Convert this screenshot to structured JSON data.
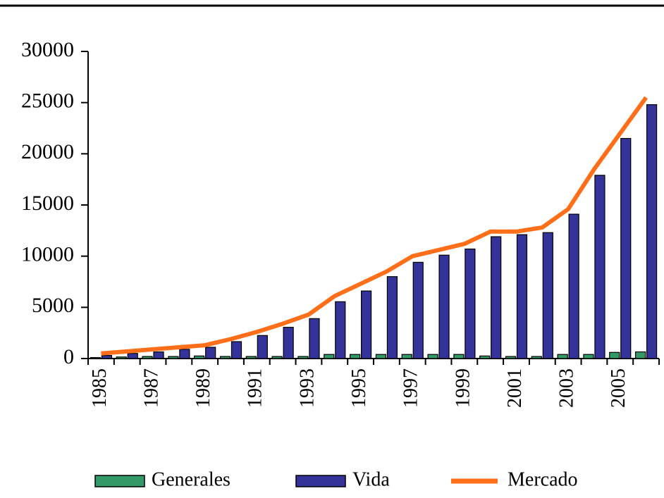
{
  "chart_data": {
    "type": "bar",
    "categories": [
      "1985",
      null,
      "1987",
      null,
      "1989",
      null,
      "1991",
      null,
      "1993",
      null,
      "1995",
      null,
      "1997",
      null,
      "1999",
      null,
      "2001",
      null,
      "2003",
      null,
      "2005",
      null
    ],
    "series": [
      {
        "name": "Generales",
        "color": "#339966",
        "values": [
          100,
          150,
          200,
          200,
          250,
          200,
          200,
          200,
          200,
          400,
          400,
          400,
          400,
          400,
          400,
          250,
          200,
          200,
          400,
          400,
          600,
          650
        ]
      },
      {
        "name": "Vida",
        "color": "#333399",
        "values": [
          300,
          500,
          650,
          900,
          1100,
          1650,
          2250,
          3050,
          3900,
          5550,
          6600,
          8000,
          9400,
          10100,
          10700,
          11900,
          12100,
          12300,
          14100,
          17900,
          21500,
          24800
        ]
      },
      {
        "name": "Mercado",
        "color": "#ff6f1a",
        "type": "line",
        "values": [
          500,
          700,
          900,
          1100,
          1300,
          1900,
          2600,
          3400,
          4300,
          6100,
          7300,
          8500,
          10000,
          10600,
          11200,
          12400,
          12400,
          12800,
          14600,
          18500,
          22000,
          25500
        ]
      }
    ],
    "ylim": [
      0,
      30000
    ],
    "yticks": [
      0,
      5000,
      10000,
      15000,
      20000,
      25000,
      30000
    ],
    "grid": false,
    "legend": "bottom"
  }
}
